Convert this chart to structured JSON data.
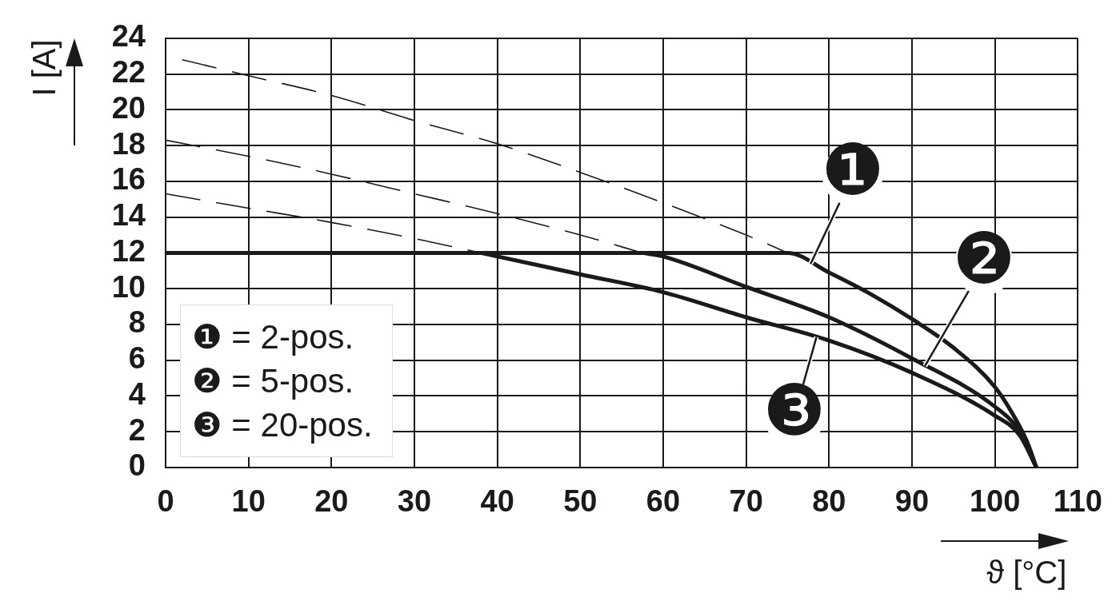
{
  "chart_data": {
    "type": "line",
    "xlabel": "ϑ [°C]",
    "ylabel": "I [A]",
    "xlim": [
      0,
      110
    ],
    "xticks": [
      0,
      10,
      20,
      30,
      40,
      50,
      60,
      70,
      80,
      90,
      100,
      110
    ],
    "ylim": [
      0,
      24
    ],
    "yticks": [
      0,
      2,
      4,
      6,
      8,
      10,
      12,
      14,
      16,
      18,
      20,
      22,
      24
    ],
    "grid": true,
    "marker": "none",
    "line_style": "solid",
    "series": [
      {
        "name": "❶",
        "color": "#1a1a1a",
        "x": [
          0,
          75,
          80,
          85,
          90,
          95,
          100,
          102.5,
          104,
          105
        ],
        "values": [
          12,
          12,
          10.9,
          9.7,
          8.3,
          6.7,
          4.5,
          2.7,
          1.3,
          0
        ]
      },
      {
        "name": "❷",
        "color": "#1a1a1a",
        "x": [
          57.5,
          60,
          70,
          80,
          90,
          100,
          103,
          105
        ],
        "values": [
          12,
          11.8,
          10.1,
          8.4,
          6.1,
          3.4,
          2.0,
          0
        ]
      },
      {
        "name": "❸",
        "color": "#1a1a1a",
        "x": [
          38,
          40,
          50,
          60,
          70,
          80,
          90,
          100,
          103,
          105
        ],
        "values": [
          12,
          11.8,
          10.8,
          9.8,
          8.4,
          7.1,
          5.3,
          2.9,
          1.8,
          0
        ]
      },
      {
        "color": "#1a1a1a",
        "line_style": "dashed",
        "x": [
          2,
          10,
          20,
          30,
          40,
          50,
          60,
          70,
          75
        ],
        "values": [
          22.8,
          21.9,
          20.8,
          19.4,
          18.1,
          16.5,
          14.8,
          13.0,
          12.0
        ]
      },
      {
        "color": "#1a1a1a",
        "line_style": "dashed",
        "x": [
          0,
          10,
          20,
          30,
          40,
          50,
          57.5
        ],
        "values": [
          18.3,
          17.4,
          16.4,
          15.3,
          14.2,
          13.0,
          12.0
        ]
      },
      {
        "color": "#1a1a1a",
        "line_style": "dashed",
        "x": [
          0,
          10,
          20,
          30,
          38
        ],
        "values": [
          15.3,
          14.5,
          13.7,
          12.8,
          12.0
        ]
      }
    ],
    "annotations": [
      "❶ = 2-pos.",
      "❷ = 5-pos.",
      "❸ = 20-pos."
    ]
  }
}
